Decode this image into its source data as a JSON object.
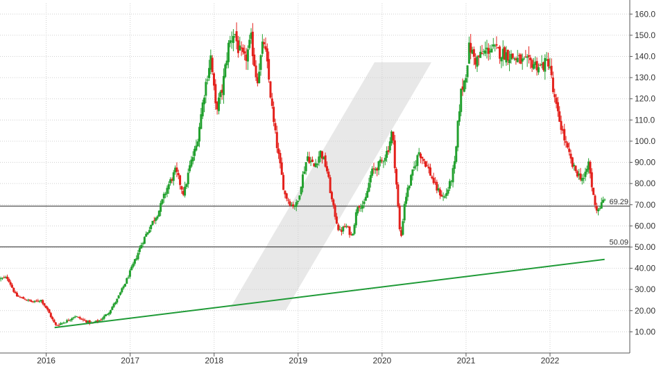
{
  "chart_data": {
    "type": "candlestick",
    "title": "",
    "xlabel": "",
    "ylabel": "",
    "xlim": [
      2015.45,
      2022.95
    ],
    "ylim": [
      0,
      165
    ],
    "grid": true,
    "x_ticks": [
      {
        "value": 2016,
        "label": "2016"
      },
      {
        "value": 2017,
        "label": "2017"
      },
      {
        "value": 2018,
        "label": "2018"
      },
      {
        "value": 2019,
        "label": "2019"
      },
      {
        "value": 2020,
        "label": "2020"
      },
      {
        "value": 2021,
        "label": "2021"
      },
      {
        "value": 2022,
        "label": "2022"
      }
    ],
    "y_ticks": [
      {
        "value": 10,
        "label": "10.00"
      },
      {
        "value": 20,
        "label": "20.00"
      },
      {
        "value": 30,
        "label": "30.00"
      },
      {
        "value": 40,
        "label": "40.00"
      },
      {
        "value": 50,
        "label": "50.00"
      },
      {
        "value": 60,
        "label": "60.00"
      },
      {
        "value": 70,
        "label": "70.00"
      },
      {
        "value": 80,
        "label": "80.00"
      },
      {
        "value": 90,
        "label": "90.00"
      },
      {
        "value": 100,
        "label": "100.0"
      },
      {
        "value": 110,
        "label": "110.0"
      },
      {
        "value": 120,
        "label": "120.0"
      },
      {
        "value": 130,
        "label": "130.0"
      },
      {
        "value": 140,
        "label": "140.0"
      },
      {
        "value": 150,
        "label": "150.0"
      },
      {
        "value": 160,
        "label": "160.0"
      }
    ],
    "horizontal_levels": [
      {
        "value": 69.29,
        "label": "69.29"
      },
      {
        "value": 50.09,
        "label": "50.09"
      }
    ],
    "trendline": {
      "x": [
        2016.1,
        2022.65
      ],
      "y": [
        12.0,
        44.2
      ]
    },
    "price_path": [
      [
        2015.45,
        35.0
      ],
      [
        2015.55,
        35.5
      ],
      [
        2015.65,
        27.0
      ],
      [
        2015.75,
        25.5
      ],
      [
        2015.85,
        24.0
      ],
      [
        2015.95,
        25.0
      ],
      [
        2016.03,
        20.0
      ],
      [
        2016.12,
        13.0
      ],
      [
        2016.25,
        15.0
      ],
      [
        2016.35,
        17.5
      ],
      [
        2016.45,
        15.5
      ],
      [
        2016.55,
        14.0
      ],
      [
        2016.65,
        15.5
      ],
      [
        2016.75,
        19.0
      ],
      [
        2016.85,
        25.0
      ],
      [
        2016.95,
        33.0
      ],
      [
        2017.05,
        42.0
      ],
      [
        2017.15,
        52.0
      ],
      [
        2017.25,
        60.0
      ],
      [
        2017.35,
        67.0
      ],
      [
        2017.45,
        78.0
      ],
      [
        2017.55,
        86.0
      ],
      [
        2017.65,
        75.0
      ],
      [
        2017.72,
        88.0
      ],
      [
        2017.8,
        98.0
      ],
      [
        2017.9,
        125.0
      ],
      [
        2017.97,
        140.0
      ],
      [
        2018.03,
        115.0
      ],
      [
        2018.1,
        123.0
      ],
      [
        2018.18,
        145.0
      ],
      [
        2018.25,
        152.0
      ],
      [
        2018.3,
        143.0
      ],
      [
        2018.38,
        138.0
      ],
      [
        2018.45,
        148.0
      ],
      [
        2018.52,
        128.0
      ],
      [
        2018.6,
        148.0
      ],
      [
        2018.65,
        133.0
      ],
      [
        2018.72,
        108.0
      ],
      [
        2018.78,
        92.0
      ],
      [
        2018.85,
        75.0
      ],
      [
        2018.93,
        70.0
      ],
      [
        2019.0,
        70.0
      ],
      [
        2019.05,
        81.0
      ],
      [
        2019.12,
        93.0
      ],
      [
        2019.2,
        88.0
      ],
      [
        2019.28,
        95.0
      ],
      [
        2019.35,
        87.0
      ],
      [
        2019.42,
        70.0
      ],
      [
        2019.5,
        57.0
      ],
      [
        2019.58,
        60.0
      ],
      [
        2019.65,
        55.0
      ],
      [
        2019.72,
        70.0
      ],
      [
        2019.8,
        70.0
      ],
      [
        2019.88,
        85.0
      ],
      [
        2020.0,
        90.0
      ],
      [
        2020.08,
        96.0
      ],
      [
        2020.13,
        105.0
      ],
      [
        2020.18,
        80.0
      ],
      [
        2020.23,
        52.0
      ],
      [
        2020.28,
        72.0
      ],
      [
        2020.35,
        82.0
      ],
      [
        2020.45,
        95.0
      ],
      [
        2020.55,
        88.0
      ],
      [
        2020.65,
        78.0
      ],
      [
        2020.75,
        73.0
      ],
      [
        2020.82,
        80.0
      ],
      [
        2020.88,
        90.0
      ],
      [
        2020.92,
        112.0
      ],
      [
        2020.95,
        123.0
      ],
      [
        2021.0,
        130.0
      ],
      [
        2021.05,
        145.0
      ],
      [
        2021.12,
        138.0
      ],
      [
        2021.2,
        141.0
      ],
      [
        2021.3,
        144.0
      ],
      [
        2021.4,
        142.0
      ],
      [
        2021.5,
        141.0
      ],
      [
        2021.6,
        139.0
      ],
      [
        2021.7,
        137.0
      ],
      [
        2021.8,
        137.0
      ],
      [
        2021.9,
        135.0
      ],
      [
        2022.0,
        138.0
      ],
      [
        2022.05,
        122.0
      ],
      [
        2022.1,
        113.0
      ],
      [
        2022.15,
        106.0
      ],
      [
        2022.2,
        98.0
      ],
      [
        2022.28,
        88.0
      ],
      [
        2022.35,
        84.0
      ],
      [
        2022.42,
        82.0
      ],
      [
        2022.47,
        90.0
      ],
      [
        2022.52,
        75.0
      ],
      [
        2022.57,
        67.0
      ],
      [
        2022.62,
        70.0
      ],
      [
        2022.65,
        72.0
      ]
    ]
  }
}
